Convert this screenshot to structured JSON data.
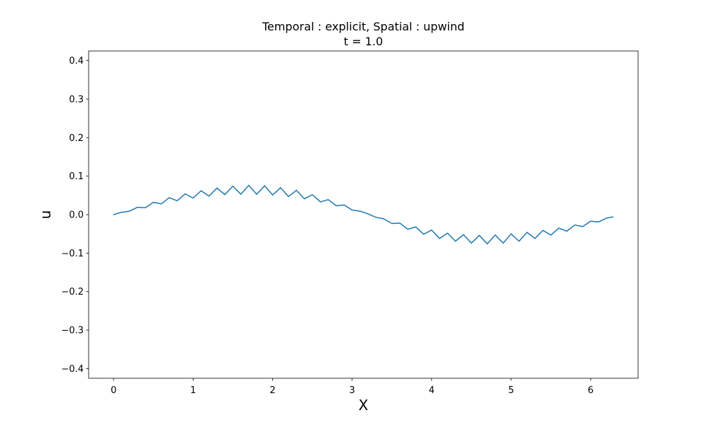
{
  "chart_data": {
    "type": "line",
    "title": "Temporal : explicit, Spatial : upwind",
    "subtitle": "t = 1.0",
    "xlabel": "X",
    "ylabel": "u",
    "xlim": [
      -0.314,
      6.597
    ],
    "ylim": [
      -0.425,
      0.425
    ],
    "xticks": [
      0,
      1,
      2,
      3,
      4,
      5,
      6
    ],
    "xtick_labels": [
      "0",
      "1",
      "2",
      "3",
      "4",
      "5",
      "6"
    ],
    "yticks": [
      -0.4,
      -0.3,
      -0.2,
      -0.1,
      0.0,
      0.1,
      0.2,
      0.3,
      0.4
    ],
    "ytick_labels": [
      "−0.4",
      "−0.3",
      "−0.2",
      "−0.1",
      "0.0",
      "0.1",
      "0.2",
      "0.3",
      "0.4"
    ],
    "grid": false,
    "legend": "none",
    "series": [
      {
        "color": "#1f77b4",
        "x": [
          0.0,
          0.1,
          0.2,
          0.3,
          0.4,
          0.5,
          0.6,
          0.7,
          0.8,
          0.9,
          1.0,
          1.1,
          1.2,
          1.3,
          1.4,
          1.5,
          1.6,
          1.7,
          1.8,
          1.9,
          2.0,
          2.1,
          2.2,
          2.3,
          2.4,
          2.5,
          2.6,
          2.7,
          2.8,
          2.9,
          3.0,
          3.1,
          3.2,
          3.3,
          3.4,
          3.5,
          3.6,
          3.7,
          3.8,
          3.9,
          4.0,
          4.1,
          4.2,
          4.3,
          4.4,
          4.5,
          4.6,
          4.7,
          4.8,
          4.9,
          5.0,
          5.1,
          5.2,
          5.3,
          5.4,
          5.5,
          5.6,
          5.7,
          5.8,
          5.9,
          6.0,
          6.1,
          6.2,
          6.28
        ],
        "y": [
          0.0,
          0.006,
          0.009,
          0.019,
          0.018,
          0.032,
          0.028,
          0.044,
          0.036,
          0.054,
          0.043,
          0.062,
          0.048,
          0.069,
          0.052,
          0.074,
          0.053,
          0.076,
          0.053,
          0.075,
          0.051,
          0.07,
          0.047,
          0.063,
          0.041,
          0.052,
          0.033,
          0.039,
          0.023,
          0.025,
          0.012,
          0.009,
          0.002,
          -0.007,
          -0.011,
          -0.023,
          -0.022,
          -0.038,
          -0.032,
          -0.051,
          -0.04,
          -0.062,
          -0.048,
          -0.069,
          -0.052,
          -0.074,
          -0.054,
          -0.076,
          -0.053,
          -0.074,
          -0.05,
          -0.069,
          -0.046,
          -0.062,
          -0.041,
          -0.053,
          -0.035,
          -0.043,
          -0.027,
          -0.031,
          -0.017,
          -0.019,
          -0.009,
          -0.006
        ]
      }
    ]
  }
}
